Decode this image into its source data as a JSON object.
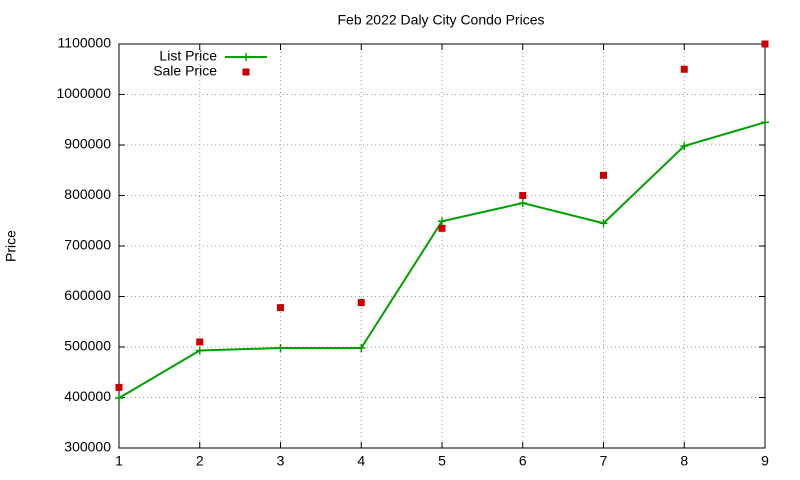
{
  "chart_data": {
    "type": "line",
    "title": "Feb 2022 Daly City Condo Prices",
    "y_label": "Price",
    "x": [
      1,
      2,
      3,
      4,
      5,
      6,
      7,
      8,
      9
    ],
    "series": [
      {
        "name": "List Price",
        "color": "#00a000",
        "style": "linespoints",
        "values": [
          399000,
          493000,
          498000,
          498000,
          749000,
          785000,
          745000,
          898000,
          945000
        ]
      },
      {
        "name": "Sale Price",
        "color": "#cc0000",
        "style": "points",
        "values": [
          420000,
          510000,
          578000,
          588000,
          735000,
          800000,
          840000,
          1050000,
          1100000
        ]
      }
    ],
    "xlim": [
      1,
      9
    ],
    "xticks": [
      1,
      2,
      3,
      4,
      5,
      6,
      7,
      8,
      9
    ],
    "ylim": [
      300000,
      1100000
    ],
    "yticks": [
      300000,
      400000,
      500000,
      600000,
      700000,
      800000,
      900000,
      1000000,
      1100000
    ],
    "grid": true,
    "legend": "top-left"
  }
}
